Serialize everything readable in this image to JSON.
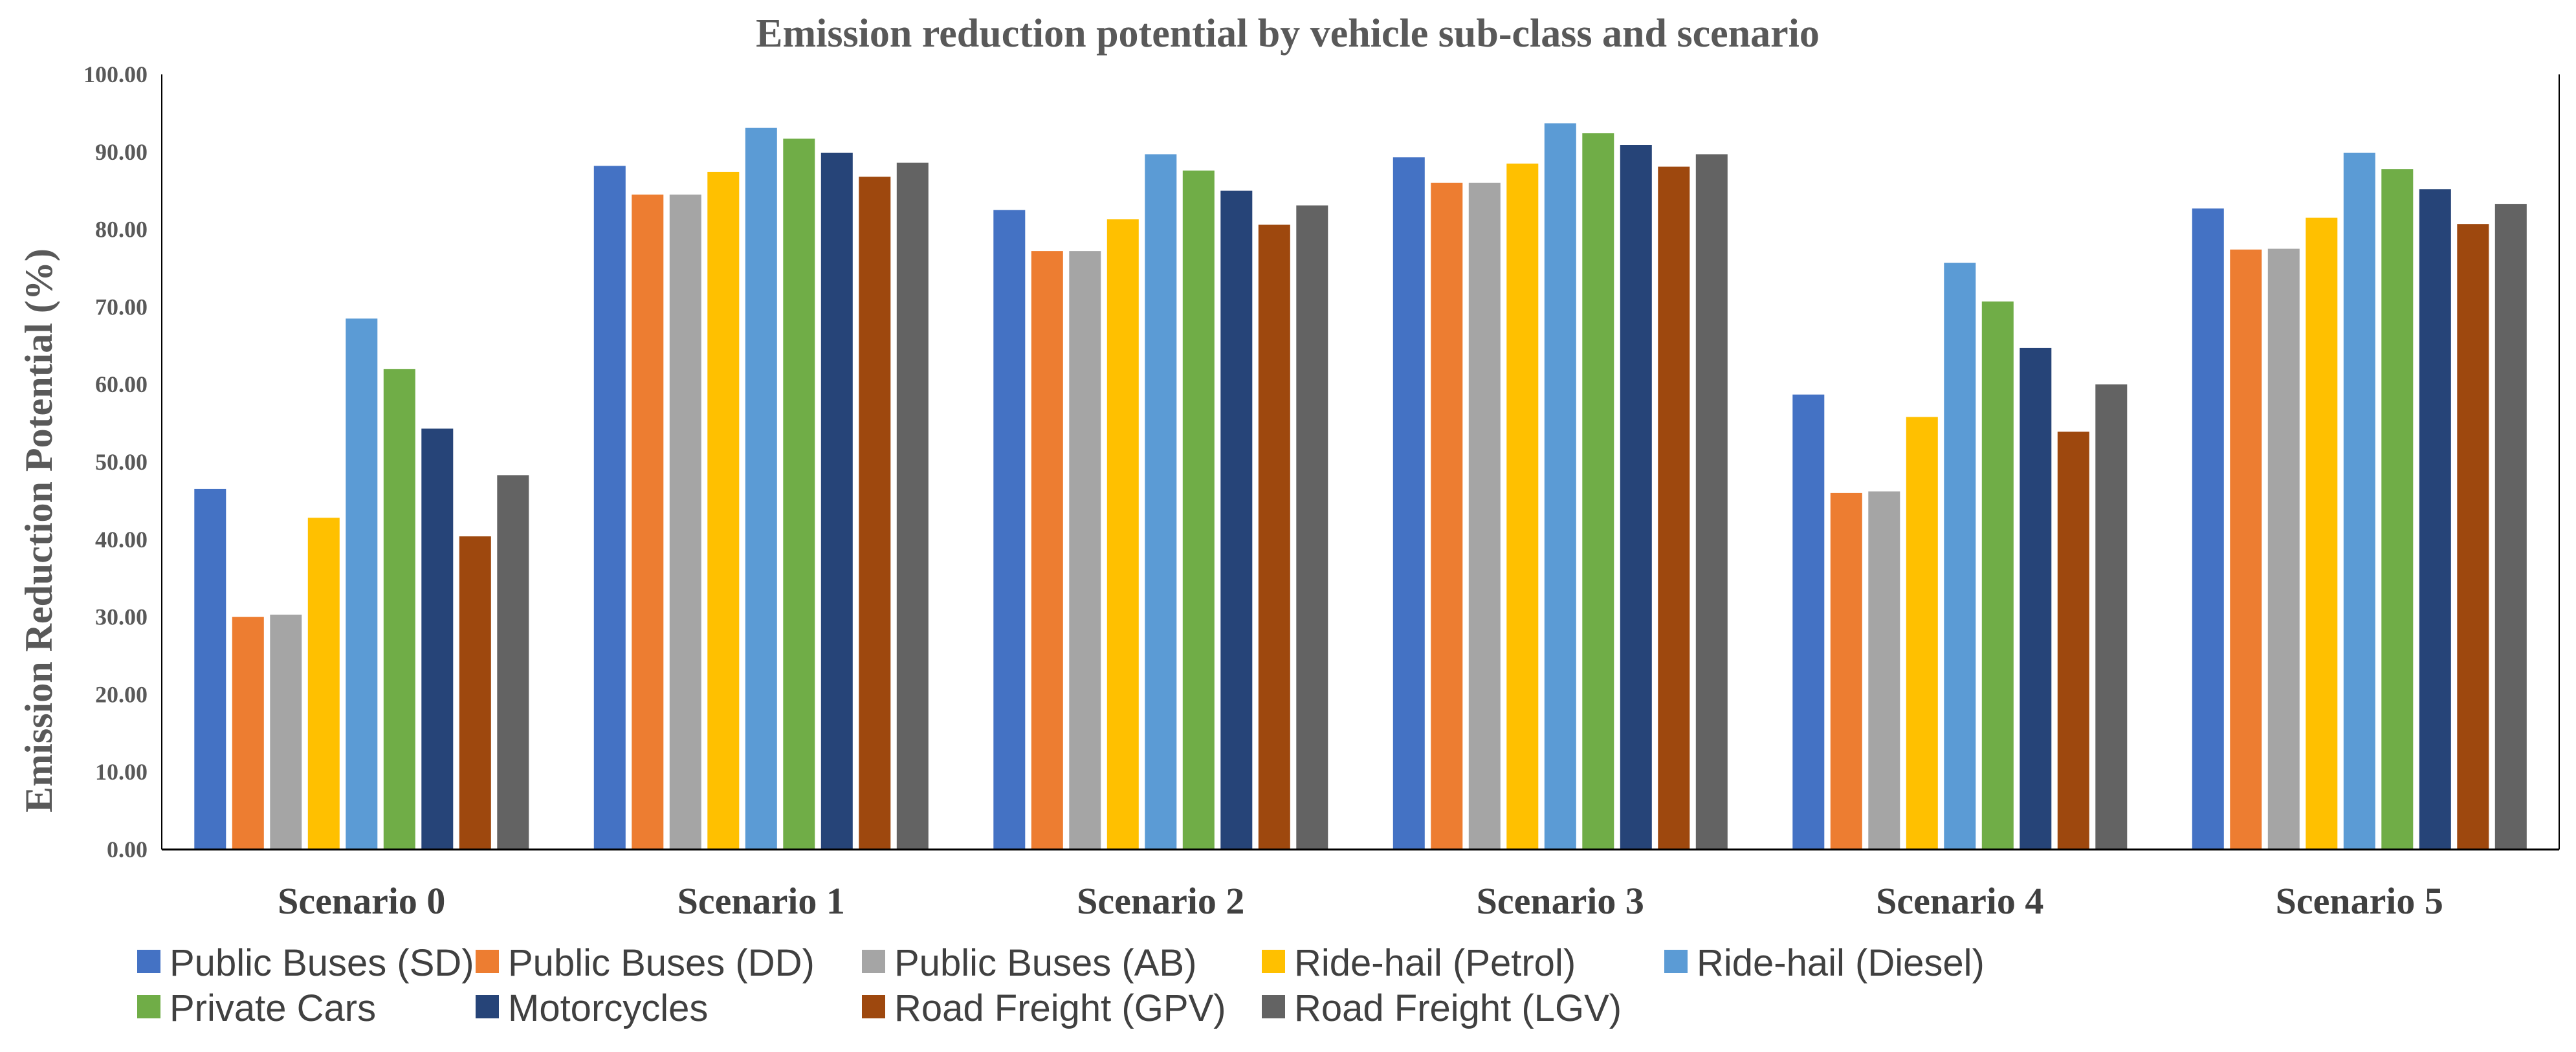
{
  "chart_data": {
    "type": "bar",
    "title": "Emission reduction potential by vehicle sub-class and scenario",
    "xlabel": "",
    "ylabel": "Emission Reduction Potential (%)",
    "ylim": [
      0,
      100
    ],
    "yticks": [
      "0.00",
      "10.00",
      "20.00",
      "30.00",
      "40.00",
      "50.00",
      "60.00",
      "70.00",
      "80.00",
      "90.00",
      "100.00"
    ],
    "categories": [
      "Scenario 0",
      "Scenario 1",
      "Scenario 2",
      "Scenario 3",
      "Scenario 4",
      "Scenario 5"
    ],
    "legend_position": "bottom",
    "series": [
      {
        "name": "Public Buses (SD)",
        "color": "#4472C4",
        "values": [
          46.5,
          88.2,
          82.5,
          89.3,
          58.7,
          82.7
        ]
      },
      {
        "name": "Public Buses (DD)",
        "color": "#ED7D31",
        "values": [
          30.0,
          84.5,
          77.2,
          86.0,
          46.0,
          77.4
        ]
      },
      {
        "name": "Public Buses (AB)",
        "color": "#A5A5A5",
        "values": [
          30.3,
          84.5,
          77.2,
          86.0,
          46.2,
          77.5
        ]
      },
      {
        "name": "Ride-hail (Petrol)",
        "color": "#FFC000",
        "values": [
          42.8,
          87.4,
          81.3,
          88.5,
          55.8,
          81.5
        ]
      },
      {
        "name": "Ride-hail (Diesel)",
        "color": "#5B9BD5",
        "values": [
          68.5,
          93.1,
          89.7,
          93.7,
          75.7,
          89.9
        ]
      },
      {
        "name": "Private Cars",
        "color": "#70AD47",
        "values": [
          62.0,
          91.7,
          87.6,
          92.4,
          70.7,
          87.8
        ]
      },
      {
        "name": "Motorcycles",
        "color": "#264478",
        "values": [
          54.3,
          89.9,
          85.0,
          90.9,
          64.7,
          85.2
        ]
      },
      {
        "name": "Road Freight (GPV)",
        "color": "#9E480E",
        "values": [
          40.4,
          86.8,
          80.6,
          88.1,
          53.9,
          80.7
        ]
      },
      {
        "name": "Road Freight (LGV)",
        "color": "#636363",
        "values": [
          48.3,
          88.6,
          83.1,
          89.7,
          60.0,
          83.3
        ]
      }
    ]
  }
}
